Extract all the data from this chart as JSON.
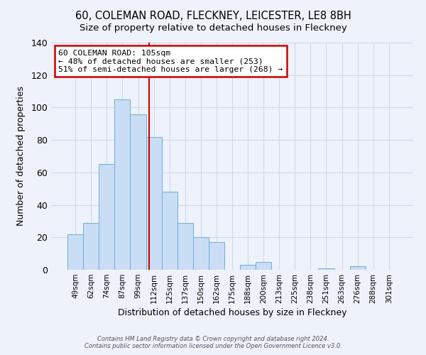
{
  "title": "60, COLEMAN ROAD, FLECKNEY, LEICESTER, LE8 8BH",
  "subtitle": "Size of property relative to detached houses in Fleckney",
  "xlabel": "Distribution of detached houses by size in Fleckney",
  "ylabel": "Number of detached properties",
  "bar_labels": [
    "49sqm",
    "62sqm",
    "74sqm",
    "87sqm",
    "99sqm",
    "112sqm",
    "125sqm",
    "137sqm",
    "150sqm",
    "162sqm",
    "175sqm",
    "188sqm",
    "200sqm",
    "213sqm",
    "225sqm",
    "238sqm",
    "251sqm",
    "263sqm",
    "276sqm",
    "288sqm",
    "301sqm"
  ],
  "bar_values": [
    22,
    29,
    65,
    105,
    96,
    82,
    48,
    29,
    20,
    17,
    0,
    3,
    5,
    0,
    0,
    0,
    1,
    0,
    2,
    0,
    0
  ],
  "bar_color": "#c9ddf5",
  "bar_edge_color": "#6baed6",
  "vline_color": "#cc0000",
  "vline_x_index": 4.7,
  "annotation_title": "60 COLEMAN ROAD: 105sqm",
  "annotation_line1": "← 48% of detached houses are smaller (253)",
  "annotation_line2": "51% of semi-detached houses are larger (268) →",
  "annotation_box_facecolor": "#ffffff",
  "annotation_box_edgecolor": "#cc0000",
  "ylim": [
    0,
    140
  ],
  "yticks": [
    0,
    20,
    40,
    60,
    80,
    100,
    120,
    140
  ],
  "footer1": "Contains HM Land Registry data © Crown copyright and database right 2024.",
  "footer2": "Contains public sector information licensed under the Open Government Licence v3.0.",
  "bg_color": "#eef2fa",
  "grid_color": "#d0d8e8",
  "title_fontsize": 10.5,
  "subtitle_fontsize": 9.5
}
